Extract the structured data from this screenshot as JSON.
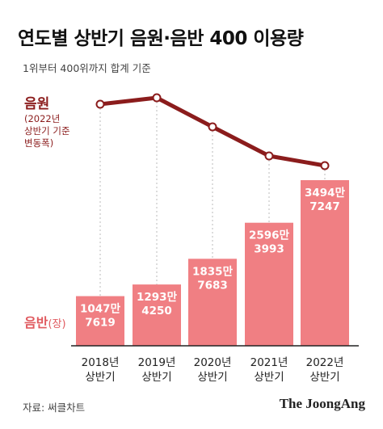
{
  "title": "연도별 상반기 음원·음반 400 이용량",
  "subtitle": "1위부터 400위까지 합계 기준",
  "line_label": "음원",
  "line_note": [
    "(2022년",
    "상반기 기준",
    "변동폭)"
  ],
  "bar_label": "음반",
  "bar_label_unit": "(장)",
  "source": "자료: 써클차트",
  "brand": "The JoongAng",
  "colors": {
    "line": "#8b1c1c",
    "bar": "#f07f83",
    "bar_text": "#ffffff",
    "axis": "#222222",
    "dashed": "#bbbbbb"
  },
  "chart_data": {
    "type": "bar",
    "categories": [
      "2018년\n상반기",
      "2019년\n상반기",
      "2020년\n상반기",
      "2021년\n상반기",
      "2022년\n상반기"
    ],
    "series": [
      {
        "name": "음반",
        "values": [
          10477619,
          12934250,
          18357683,
          25963993,
          34947247
        ],
        "labels": [
          [
            "1047만",
            "7619"
          ],
          [
            "1293만",
            "4250"
          ],
          [
            "1835만",
            "7683"
          ],
          [
            "2596만",
            "3993"
          ],
          [
            "3494만",
            "7247"
          ]
        ]
      },
      {
        "name": "음원",
        "type": "line",
        "values": [
          100,
          102,
          93,
          84,
          81
        ]
      }
    ]
  }
}
